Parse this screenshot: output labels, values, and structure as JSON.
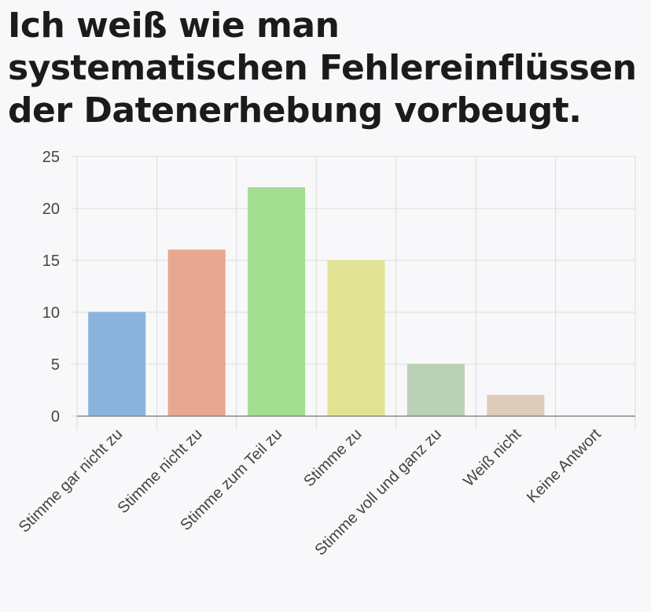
{
  "chart_data": {
    "type": "bar",
    "title": "Ich weiß wie man systematischen Fehlereinflüssen der Datenerhebung vorbeugt.",
    "categories": [
      "Stimme gar nicht zu",
      "Stimme nicht zu",
      "Stimme zum Teil zu",
      "Stimme zu",
      "Stimme voll und ganz zu",
      "Weiß nicht",
      "Keine Antwort"
    ],
    "values": [
      10,
      16,
      22,
      15,
      5,
      2,
      0
    ],
    "colors": [
      "#85b0da",
      "#e5a38b",
      "#9edc8b",
      "#e1e18f",
      "#b7cfb3",
      "#dbc9b5",
      "#cccccc"
    ],
    "ylim": [
      0,
      25
    ],
    "yticks": [
      0,
      5,
      10,
      15,
      20,
      25
    ],
    "xlabel": "",
    "ylabel": "",
    "grid": true
  }
}
